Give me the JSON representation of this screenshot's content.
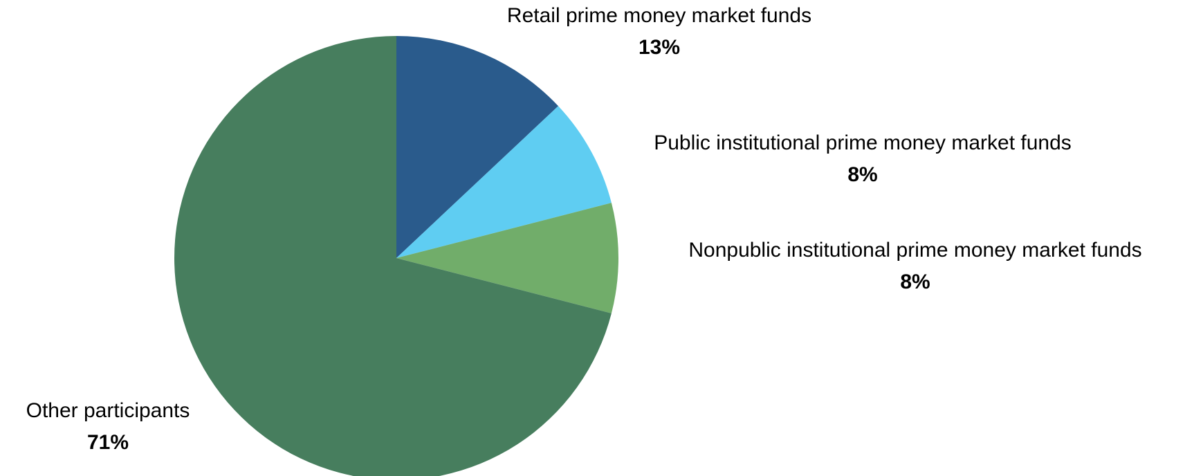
{
  "chart_data": {
    "type": "pie",
    "categories": [
      "Retail prime money market funds",
      "Public institutional prime money market funds",
      "Nonpublic institutional prime money market funds",
      "Other participants"
    ],
    "values": [
      13,
      8,
      8,
      71
    ],
    "value_labels": [
      "13%",
      "8%",
      "8%",
      "71%"
    ],
    "colors": [
      "#2a5b8c",
      "#5fcdf2",
      "#71ad6a",
      "#477e5e"
    ]
  }
}
